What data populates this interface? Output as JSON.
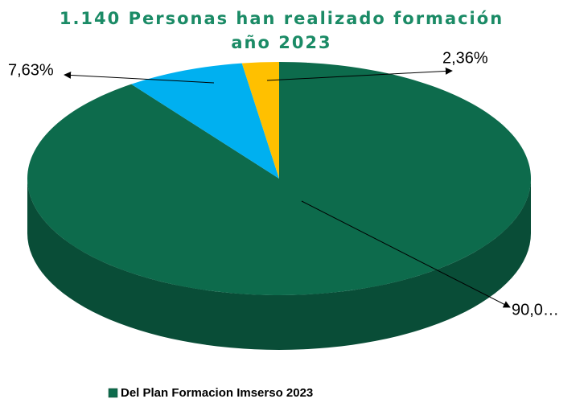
{
  "chart_data": {
    "type": "pie",
    "title": "1.140 Personas han realizado formación año 2023",
    "categories": [
      "Del Plan Formacion Imserso 2023",
      null,
      null
    ],
    "values": [
      90.01,
      7.63,
      2.36
    ],
    "value_labels": [
      "90,0…",
      "7,63%",
      "2,36%"
    ],
    "colors": [
      "#0d6b4c",
      "#00b0f0",
      "#ffc000"
    ],
    "legend": "bottom"
  }
}
